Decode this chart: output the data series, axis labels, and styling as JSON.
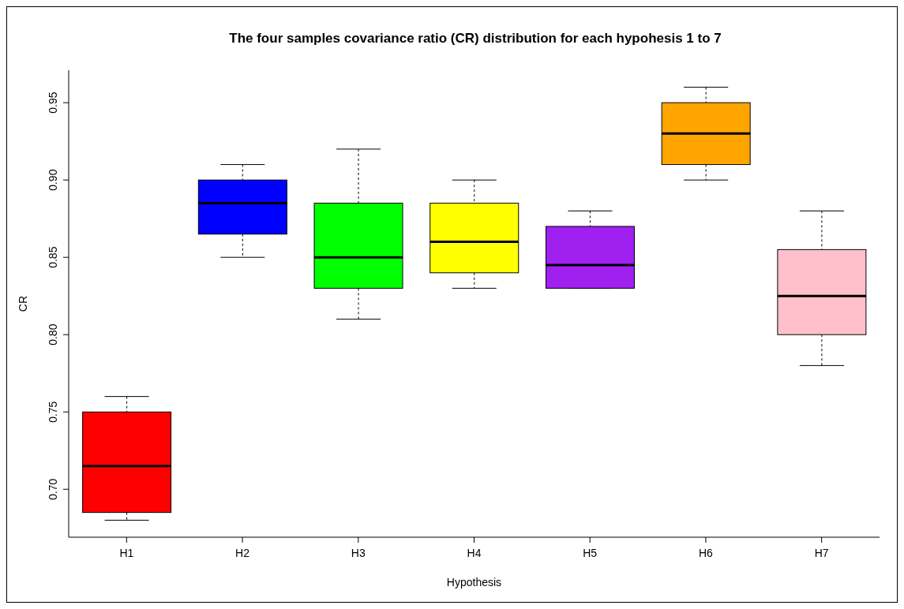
{
  "chart_data": {
    "type": "box",
    "title": "The four samples covariance ratio (CR) distribution for each hypohesis 1 to 7",
    "xlabel": "Hypothesis",
    "ylabel": "CR",
    "categories": [
      "H1",
      "H2",
      "H3",
      "H4",
      "H5",
      "H6",
      "H7"
    ],
    "colors": [
      "#ff0000",
      "#0000ff",
      "#00ff00",
      "#ffff00",
      "#a020f0",
      "#ffa500",
      "#ffc0cb"
    ],
    "boxes": [
      {
        "low": 0.68,
        "q1": 0.685,
        "median": 0.715,
        "q3": 0.75,
        "high": 0.76
      },
      {
        "low": 0.85,
        "q1": 0.865,
        "median": 0.885,
        "q3": 0.9,
        "high": 0.91
      },
      {
        "low": 0.81,
        "q1": 0.83,
        "median": 0.85,
        "q3": 0.885,
        "high": 0.92
      },
      {
        "low": 0.83,
        "q1": 0.84,
        "median": 0.86,
        "q3": 0.885,
        "high": 0.9
      },
      {
        "low": 0.83,
        "q1": 0.83,
        "median": 0.845,
        "q3": 0.87,
        "high": 0.88
      },
      {
        "low": 0.9,
        "q1": 0.91,
        "median": 0.93,
        "q3": 0.95,
        "high": 0.96
      },
      {
        "low": 0.78,
        "q1": 0.8,
        "median": 0.825,
        "q3": 0.855,
        "high": 0.88
      }
    ],
    "ylim": [
      0.669,
      0.971
    ],
    "yticks": [
      {
        "value": 0.7,
        "label": "0.70"
      },
      {
        "value": 0.75,
        "label": "0.75"
      },
      {
        "value": 0.8,
        "label": "0.80"
      },
      {
        "value": 0.85,
        "label": "0.85"
      },
      {
        "value": 0.9,
        "label": "0.90"
      },
      {
        "value": 0.95,
        "label": "0.95"
      }
    ]
  }
}
